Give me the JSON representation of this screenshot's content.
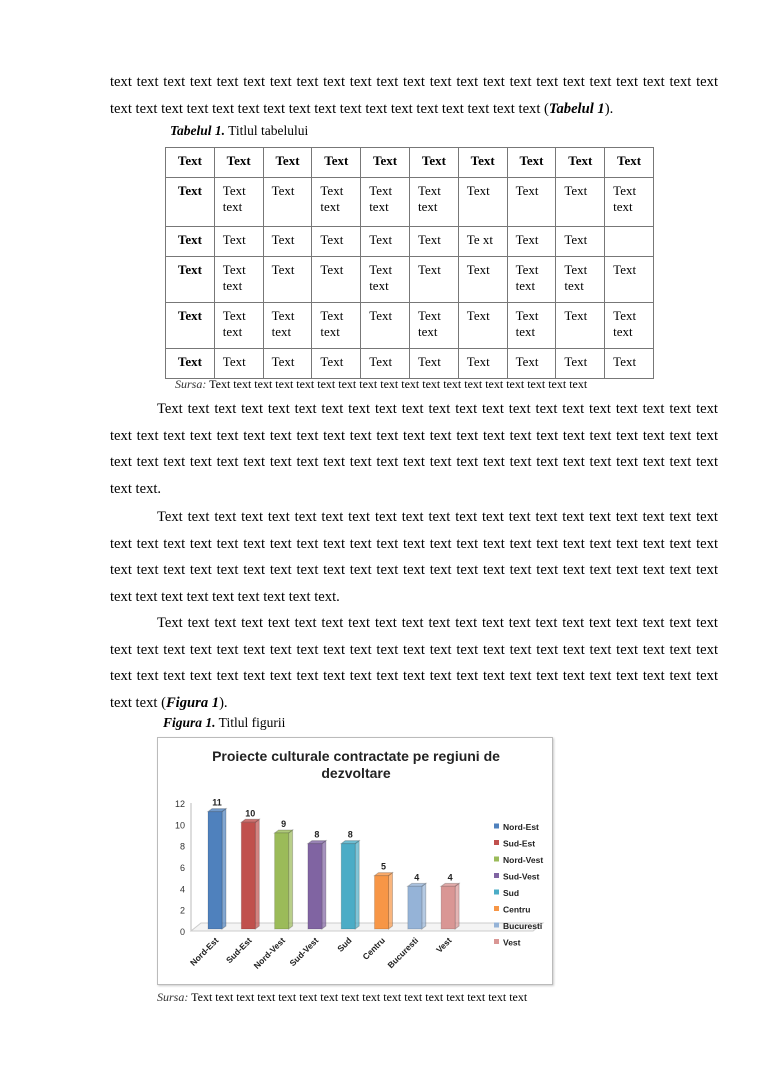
{
  "paragraphs": [
    {
      "text": "text text text text text text text text text text text text text text text text text text text text text text text text text text text text text text text text text text text text text text text text (",
      "ref": "Tabelul 1",
      "end": ")."
    },
    {
      "text": "Text text text text text text text text text text text text text text text text text text text text text text text text text text text text text text text text text text text text text text text text text text text text text text text text text text text text text text text text text text text text text text text text text text text text text."
    },
    {
      "text": "Text text text text text text text text text text text text text text text text text text text text text text text text text text text text text text text text text text text text text text text text text text text text text text text text text text text text text text text text text text text text text text text text text text text text text text text text text text text text."
    },
    {
      "text": "Text text text text text text text text text text text text text text text text text text text text text text text text text text text text text text text text text text text text text text text text text text text text text text text text text text text text text text text text text text text text text text text text text text text text text (",
      "ref": "Figura 1",
      "end": ")."
    }
  ],
  "table": {
    "caption_label": "Tabelul 1.",
    "caption_title": "Titlul tabelului",
    "header": [
      "Text",
      "Text",
      "Text",
      "Text",
      "Text",
      "Text",
      "Text",
      "Text",
      "Text",
      "Text"
    ],
    "rows": [
      [
        "Text",
        "Text text",
        "Text",
        "Text text",
        "Text text",
        "Text text",
        "Text",
        "Text",
        "Text",
        "Text text"
      ],
      [
        "Text",
        "Text",
        "Text",
        "Text",
        "Text",
        "Text",
        "Te  xt",
        "Text",
        "Text",
        ""
      ],
      [
        "Text",
        "Text text",
        "Text",
        "Text",
        "Text text",
        "Text",
        "Text",
        "Text text",
        "Text text",
        "Text"
      ],
      [
        "Text",
        "Text text",
        "Text text",
        "Text text",
        "Text",
        "Text text",
        "Text",
        "Text text",
        "Text",
        "Text text"
      ],
      [
        "Text",
        "Text",
        "Text",
        "Text",
        "Text",
        "Text",
        "Text",
        "Text",
        "Text",
        "Text"
      ]
    ],
    "source_label": "Sursa:",
    "source_text": "Text text text text text text text text text text text text text text text text text text"
  },
  "figure": {
    "caption_label": "Figura 1.",
    "caption_title": "Titlul figurii",
    "source_label": "Sursa:",
    "source_text": "Text text text text text text text text text text text text text text text text"
  },
  "chart_data": {
    "type": "bar",
    "style": "3d-column",
    "title_lines": [
      "Proiecte culturale contractate pe regiuni de",
      "dezvoltare"
    ],
    "categories": [
      "Nord-Est",
      "Sud-Est",
      "Nord-Vest",
      "Sud-Vest",
      "Sud",
      "Centru",
      "Bucuresti",
      "Vest"
    ],
    "values": [
      11,
      10,
      9,
      8,
      8,
      5,
      4,
      4
    ],
    "colors": [
      "#4F81BD",
      "#C0504D",
      "#9BBB59",
      "#8064A2",
      "#4BACC6",
      "#F79646",
      "#95B3D7",
      "#D99694"
    ],
    "yticks": [
      0,
      2,
      4,
      6,
      8,
      10,
      12
    ],
    "ylim": [
      0,
      12
    ],
    "legend": [
      "Nord-Est",
      "Sud-Est",
      "Nord-Vest",
      "Sud-Vest",
      "Sud",
      "Centru",
      "Bucuresti",
      "Vest"
    ],
    "legend_position": "right",
    "grid": false,
    "data_labels": true
  }
}
